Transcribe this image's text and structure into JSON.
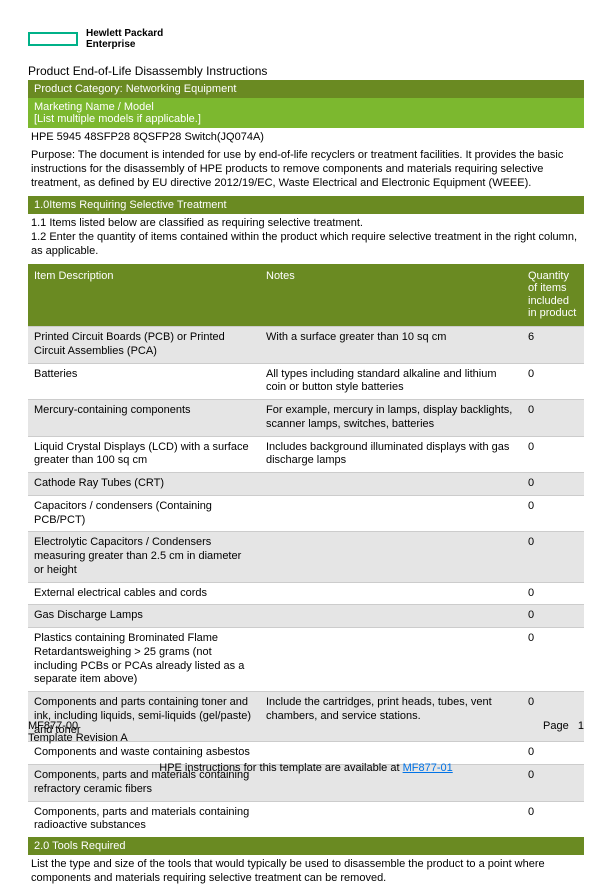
{
  "logo": {
    "line1": "Hewlett Packard",
    "line2": "Enterprise"
  },
  "doc_title": "Product End-of-Life Disassembly Instructions",
  "cat_bar": "Product Category: Networking Equipment",
  "marketing_bar_l1": "Marketing Name / Model",
  "marketing_bar_l2": "[List multiple models if applicable.]",
  "model": "HPE 5945 48SFP28 8QSFP28 Switch(JQ074A)",
  "purpose": "Purpose: The document is intended for use by end-of-life recyclers or treatment facilities. It provides the basic instructions for the disassembly of HPE products to remove components and materials requiring selective treatment, as defined by EU directive  2012/19/EC, Waste Electrical and Electronic Equipment (WEEE).",
  "sec1_bar": "1.0Items Requiring Selective Treatment",
  "sec1_t1": "1.1 Items listed below are classified as requiring selective treatment.",
  "sec1_t2": "1.2 Enter the quantity of items contained within the product which require selective treatment in the right column, as applicable.",
  "th": {
    "desc": "Item Description",
    "notes": "Notes",
    "qty": "Quantity of items included in product"
  },
  "rows": [
    {
      "d": "Printed Circuit Boards (PCB) or Printed Circuit Assemblies (PCA)",
      "n": "With a surface greater than 10 sq cm",
      "q": "6"
    },
    {
      "d": "Batteries",
      "n": "All types including standard alkaline and lithium coin or button style batteries",
      "q": "0"
    },
    {
      "d": "Mercury-containing components",
      "n": "For example, mercury in lamps, display backlights, scanner lamps, switches, batteries",
      "q": "0"
    },
    {
      "d": "Liquid Crystal Displays (LCD) with a surface greater than 100 sq cm",
      "n": "Includes background illuminated displays with gas discharge lamps",
      "q": "0"
    },
    {
      "d": "Cathode Ray Tubes (CRT)",
      "n": "",
      "q": "0"
    },
    {
      "d": "Capacitors / condensers (Containing PCB/PCT)",
      "n": "",
      "q": "0"
    },
    {
      "d": "Electrolytic Capacitors / Condensers measuring greater than 2.5 cm in diameter or height",
      "n": "",
      "q": "0"
    },
    {
      "d": "External electrical cables and cords",
      "n": "",
      "q": "0"
    },
    {
      "d": "Gas Discharge Lamps",
      "n": "",
      "q": "0"
    },
    {
      "d": "Plastics containing Brominated Flame Retardantsweighing > 25 grams (not including PCBs or PCAs already listed as a separate item above)",
      "n": "",
      "q": "0"
    },
    {
      "d": "Components and parts containing toner and ink, including liquids, semi-liquids (gel/paste) and toner",
      "n": "Include the cartridges, print heads, tubes, vent chambers, and service stations.",
      "q": "0"
    },
    {
      "d": "Components and waste containing asbestos",
      "n": "",
      "q": "0"
    },
    {
      "d": "Components, parts and materials containing refractory ceramic fibers",
      "n": "",
      "q": "0"
    },
    {
      "d": "Components, parts and materials containing radioactive substances",
      "n": "",
      "q": "0"
    }
  ],
  "sec2_bar": "2.0 Tools Required",
  "sec2_text": "List the type and size of the tools that would typically be used to disassemble the product to a point where components and materials requiring selective treatment can be removed.",
  "footer": {
    "code": "MF877-00",
    "rev": "Template Revision A",
    "page_label": "Page",
    "page_num": "1"
  },
  "footnote": {
    "prefix": "HPE instructions for this template are available at ",
    "link": "MF877-01"
  },
  "colors": {
    "olive": "#6A8A22",
    "green": "#7CB82F",
    "teal": "#00B188",
    "alt_row": "#E5E5E5",
    "link": "#0073E7"
  }
}
